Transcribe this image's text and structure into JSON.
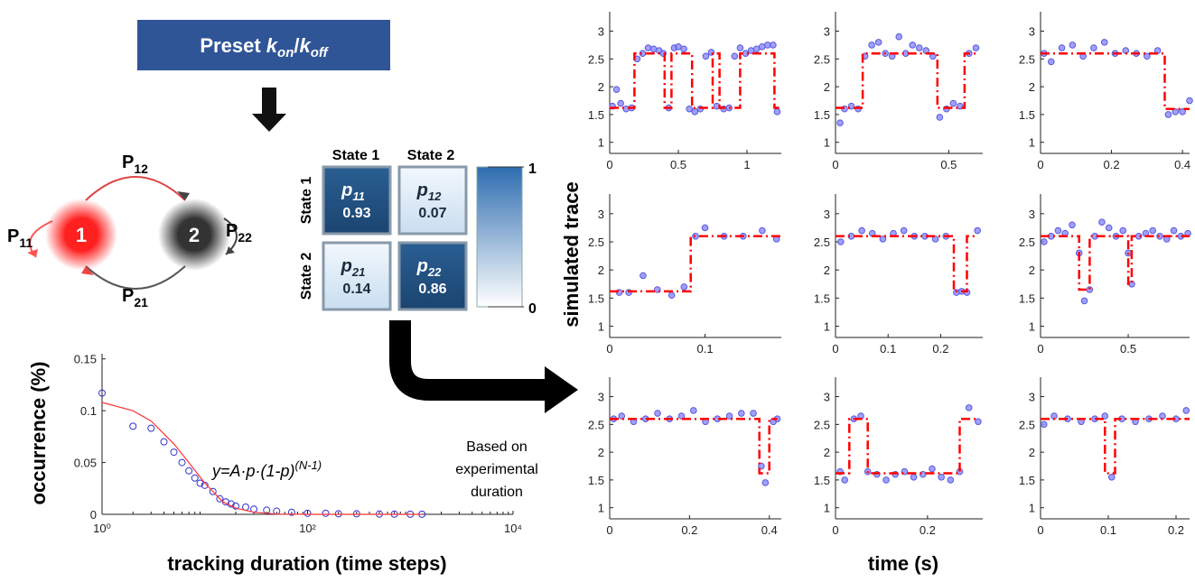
{
  "diagram": {
    "preset": {
      "prefix": "Preset",
      "k1": "k",
      "sub1": "on",
      "slash": "/",
      "k2": "k",
      "sub2": "off"
    },
    "nodes": [
      {
        "label": "1"
      },
      {
        "label": "2"
      }
    ],
    "edges": [
      {
        "main": "P",
        "sub": "12"
      },
      {
        "main": "P",
        "sub": "21"
      },
      {
        "main": "P",
        "sub": "11"
      },
      {
        "main": "P",
        "sub": "22"
      }
    ],
    "matrix": {
      "columns": [
        "State 1",
        "State 2"
      ],
      "rows": [
        "State 1",
        "State 2"
      ],
      "cells": [
        [
          {
            "symbol": "p",
            "sub": "11",
            "value": 0.93
          },
          {
            "symbol": "p",
            "sub": "12",
            "value": 0.07
          }
        ],
        [
          {
            "symbol": "p",
            "sub": "21",
            "value": 0.14
          },
          {
            "symbol": "p",
            "sub": "22",
            "value": 0.86
          }
        ]
      ],
      "colorbar": {
        "top": 1,
        "bottom": 0
      }
    },
    "note": [
      "Based on",
      "experimental",
      "duration"
    ]
  },
  "trace_grid": {
    "ylabel": "simulated trace",
    "xlabel": "time (s)"
  },
  "chart_data": [
    {
      "type": "scatter",
      "log_x": true,
      "ylabel": "occurrence (%)",
      "xlabel": "tracking duration (time steps)",
      "annotation": {
        "base": "y=A·p·(1-p)",
        "exponent": "(N-1)"
      },
      "xlim": [
        1,
        10000
      ],
      "xticks": [
        {
          "value": 1,
          "label": "10⁰"
        },
        {
          "value": 100,
          "label": "10²"
        },
        {
          "value": 10000,
          "label": "10⁴"
        }
      ],
      "ylim": [
        0,
        0.155
      ],
      "yticks": [
        0,
        0.05,
        0.1,
        0.15
      ],
      "series": [
        {
          "style": "points",
          "color": "#3333cc",
          "x": [
            1,
            2,
            3,
            4,
            5,
            6,
            7,
            8,
            9,
            10,
            12,
            14,
            16,
            18,
            20,
            25,
            30,
            40,
            50,
            70,
            100,
            150,
            200,
            300,
            500,
            700,
            1000,
            1300
          ],
          "values": [
            0.117,
            0.085,
            0.083,
            0.07,
            0.06,
            0.05,
            0.042,
            0.035,
            0.03,
            0.028,
            0.022,
            0.015,
            0.012,
            0.01,
            0.008,
            0.007,
            0.005,
            0.004,
            0.003,
            0.002,
            0.001,
            0.001,
            0.0005,
            0.0005,
            0.0003,
            0.0002,
            0.0001,
            0.0001
          ]
        },
        {
          "style": "line",
          "color": "#ff3333",
          "x": [
            1,
            2,
            3,
            5,
            7,
            10,
            15,
            20,
            30,
            50,
            100,
            300,
            1000,
            1300
          ],
          "values": [
            0.108,
            0.1,
            0.09,
            0.068,
            0.05,
            0.03,
            0.012,
            0.006,
            0.002,
            0.0003,
            0,
            0,
            0,
            0
          ]
        }
      ]
    },
    {
      "type": "step",
      "xlim": [
        0,
        1.25
      ],
      "xticks": [
        0,
        0.5,
        1
      ],
      "ylim": [
        0.8,
        3.35
      ],
      "yticks": [
        1,
        1.5,
        2,
        2.5,
        3
      ],
      "series": [
        {
          "style": "points",
          "color": "#8888ff",
          "x": [
            0.02,
            0.05,
            0.08,
            0.12,
            0.16,
            0.2,
            0.24,
            0.28,
            0.32,
            0.36,
            0.39,
            0.43,
            0.47,
            0.5,
            0.54,
            0.58,
            0.62,
            0.66,
            0.7,
            0.74,
            0.78,
            0.83,
            0.87,
            0.91,
            0.95,
            0.99,
            1.03,
            1.07,
            1.11,
            1.15,
            1.19,
            1.22
          ],
          "values": [
            1.65,
            1.95,
            1.7,
            1.6,
            1.62,
            2.5,
            2.6,
            2.7,
            2.68,
            2.65,
            2.6,
            1.62,
            2.7,
            2.72,
            2.68,
            1.6,
            1.55,
            1.6,
            2.55,
            2.62,
            1.65,
            1.6,
            1.62,
            2.55,
            2.7,
            2.6,
            2.65,
            2.68,
            2.72,
            2.75,
            2.75,
            1.55
          ]
        },
        {
          "style": "line",
          "color": "#ff0000",
          "x": [
            0,
            0.18,
            0.18,
            0.4,
            0.4,
            0.45,
            0.45,
            0.6,
            0.6,
            0.75,
            0.75,
            0.8,
            0.8,
            0.95,
            0.95,
            1.2,
            1.2,
            1.25
          ],
          "values": [
            1.62,
            1.62,
            2.6,
            2.6,
            1.62,
            1.62,
            2.6,
            2.6,
            1.62,
            1.62,
            2.6,
            2.6,
            1.62,
            1.62,
            2.6,
            2.6,
            1.62,
            1.62
          ]
        }
      ]
    },
    {
      "type": "step",
      "xlim": [
        0,
        0.65
      ],
      "xticks": [
        0,
        0.5
      ],
      "ylim": [
        0.8,
        3.35
      ],
      "yticks": [
        1,
        1.5,
        2,
        2.5,
        3
      ],
      "series": [
        {
          "style": "points",
          "color": "#8888ff",
          "x": [
            0.02,
            0.04,
            0.07,
            0.1,
            0.13,
            0.16,
            0.19,
            0.22,
            0.25,
            0.28,
            0.31,
            0.34,
            0.37,
            0.4,
            0.43,
            0.46,
            0.49,
            0.52,
            0.55,
            0.59,
            0.62
          ],
          "values": [
            1.35,
            1.6,
            1.65,
            1.6,
            2.55,
            2.75,
            2.8,
            2.6,
            2.55,
            2.9,
            2.6,
            2.75,
            2.7,
            2.65,
            2.55,
            1.45,
            1.6,
            1.7,
            1.65,
            2.6,
            2.7
          ]
        },
        {
          "style": "line",
          "color": "#ff0000",
          "x": [
            0,
            0.12,
            0.12,
            0.45,
            0.45,
            0.57,
            0.57,
            0.62
          ],
          "values": [
            1.62,
            1.62,
            2.6,
            2.6,
            1.62,
            1.62,
            2.6,
            2.6
          ]
        }
      ]
    },
    {
      "type": "step",
      "xlim": [
        0,
        0.42
      ],
      "xticks": [
        0,
        0.2,
        0.4
      ],
      "ylim": [
        0.8,
        3.35
      ],
      "yticks": [
        1,
        1.5,
        2,
        2.5,
        3
      ],
      "series": [
        {
          "style": "points",
          "color": "#8888ff",
          "x": [
            0.01,
            0.03,
            0.06,
            0.09,
            0.12,
            0.15,
            0.18,
            0.21,
            0.24,
            0.27,
            0.3,
            0.33,
            0.36,
            0.38,
            0.4,
            0.42
          ],
          "values": [
            2.6,
            2.45,
            2.7,
            2.75,
            2.55,
            2.7,
            2.8,
            2.6,
            2.65,
            2.6,
            2.55,
            2.65,
            1.5,
            1.55,
            1.55,
            1.75
          ]
        },
        {
          "style": "line",
          "color": "#ff0000",
          "x": [
            0,
            0.35,
            0.35,
            0.42
          ],
          "values": [
            2.6,
            2.6,
            1.6,
            1.6
          ]
        }
      ]
    },
    {
      "type": "step",
      "xlim": [
        0,
        0.18
      ],
      "xticks": [
        0,
        0.1
      ],
      "ylim": [
        0.8,
        3.35
      ],
      "yticks": [
        1,
        1.5,
        2,
        2.5,
        3
      ],
      "series": [
        {
          "style": "points",
          "color": "#8888ff",
          "x": [
            0.01,
            0.02,
            0.035,
            0.05,
            0.065,
            0.078,
            0.09,
            0.1,
            0.12,
            0.14,
            0.16,
            0.175
          ],
          "values": [
            1.6,
            1.6,
            1.9,
            1.65,
            1.55,
            1.7,
            2.6,
            2.75,
            2.6,
            2.6,
            2.7,
            2.55
          ]
        },
        {
          "style": "line",
          "color": "#ff0000",
          "x": [
            0,
            0.085,
            0.085,
            0.18
          ],
          "values": [
            1.62,
            1.62,
            2.6,
            2.6
          ]
        }
      ]
    },
    {
      "type": "step",
      "xlim": [
        0,
        0.28
      ],
      "xticks": [
        0,
        0.1,
        0.2
      ],
      "ylim": [
        0.8,
        3.35
      ],
      "yticks": [
        1,
        1.5,
        2,
        2.5,
        3
      ],
      "series": [
        {
          "style": "points",
          "color": "#8888ff",
          "x": [
            0.01,
            0.03,
            0.05,
            0.07,
            0.09,
            0.11,
            0.13,
            0.15,
            0.17,
            0.19,
            0.21,
            0.23,
            0.24,
            0.25,
            0.27
          ],
          "values": [
            2.5,
            2.6,
            2.7,
            2.65,
            2.55,
            2.65,
            2.7,
            2.6,
            2.6,
            2.55,
            2.6,
            1.6,
            1.62,
            1.6,
            2.7
          ]
        },
        {
          "style": "line",
          "color": "#ff0000",
          "x": [
            0,
            0.225,
            0.225,
            0.25,
            0.25,
            0.27
          ],
          "values": [
            2.6,
            2.6,
            1.62,
            1.62,
            2.6,
            2.6
          ]
        }
      ]
    },
    {
      "type": "step",
      "xlim": [
        0,
        0.85
      ],
      "xticks": [
        0,
        0.5
      ],
      "ylim": [
        0.8,
        3.35
      ],
      "yticks": [
        1,
        1.5,
        2,
        2.5,
        3
      ],
      "series": [
        {
          "style": "points",
          "color": "#8888ff",
          "x": [
            0.02,
            0.06,
            0.1,
            0.14,
            0.18,
            0.22,
            0.25,
            0.28,
            0.31,
            0.35,
            0.39,
            0.43,
            0.47,
            0.5,
            0.52,
            0.56,
            0.6,
            0.64,
            0.68,
            0.72,
            0.76,
            0.8,
            0.84
          ],
          "values": [
            2.5,
            2.6,
            2.7,
            2.65,
            2.8,
            2.3,
            1.45,
            1.65,
            2.6,
            2.85,
            2.75,
            2.6,
            2.7,
            2.3,
            1.75,
            2.6,
            2.65,
            2.7,
            2.6,
            2.55,
            2.7,
            2.6,
            2.65
          ]
        },
        {
          "style": "line",
          "color": "#ff0000",
          "x": [
            0,
            0.22,
            0.22,
            0.28,
            0.28,
            0.5,
            0.5,
            0.52,
            0.52,
            0.85
          ],
          "values": [
            2.6,
            2.6,
            1.65,
            1.65,
            2.6,
            2.6,
            1.75,
            1.75,
            2.6,
            2.6
          ]
        }
      ]
    },
    {
      "type": "step",
      "xlim": [
        0,
        0.43
      ],
      "xticks": [
        0,
        0.2,
        0.4
      ],
      "ylim": [
        0.8,
        3.35
      ],
      "yticks": [
        1,
        1.5,
        2,
        2.5,
        3
      ],
      "series": [
        {
          "style": "points",
          "color": "#8888ff",
          "x": [
            0.01,
            0.03,
            0.06,
            0.09,
            0.12,
            0.15,
            0.18,
            0.21,
            0.24,
            0.27,
            0.3,
            0.33,
            0.36,
            0.38,
            0.39,
            0.41,
            0.42
          ],
          "values": [
            2.6,
            2.65,
            2.55,
            2.6,
            2.7,
            2.6,
            2.65,
            2.75,
            2.55,
            2.6,
            2.65,
            2.7,
            2.7,
            1.75,
            1.45,
            2.55,
            2.6
          ]
        },
        {
          "style": "line",
          "color": "#ff0000",
          "x": [
            0,
            0.375,
            0.375,
            0.4,
            0.4,
            0.42
          ],
          "values": [
            2.6,
            2.6,
            1.62,
            1.62,
            2.6,
            2.6
          ]
        }
      ]
    },
    {
      "type": "step",
      "xlim": [
        0,
        0.32
      ],
      "xticks": [
        0,
        0.2
      ],
      "ylim": [
        0.8,
        3.35
      ],
      "yticks": [
        1,
        1.5,
        2,
        2.5,
        3
      ],
      "series": [
        {
          "style": "points",
          "color": "#8888ff",
          "x": [
            0.01,
            0.02,
            0.04,
            0.055,
            0.07,
            0.09,
            0.11,
            0.13,
            0.15,
            0.17,
            0.19,
            0.21,
            0.23,
            0.25,
            0.27,
            0.29,
            0.31
          ],
          "values": [
            1.65,
            1.5,
            2.6,
            2.65,
            1.65,
            1.6,
            1.5,
            1.6,
            1.65,
            1.55,
            1.6,
            1.7,
            1.55,
            1.5,
            1.65,
            2.8,
            2.55
          ]
        },
        {
          "style": "line",
          "color": "#ff0000",
          "x": [
            0,
            0.03,
            0.03,
            0.07,
            0.07,
            0.27,
            0.27,
            0.31
          ],
          "values": [
            1.62,
            1.62,
            2.6,
            2.6,
            1.62,
            1.62,
            2.6,
            2.6
          ]
        }
      ]
    },
    {
      "type": "step",
      "xlim": [
        0,
        0.22
      ],
      "xticks": [
        0,
        0.1,
        0.2
      ],
      "ylim": [
        0.8,
        3.35
      ],
      "yticks": [
        1,
        1.5,
        2,
        2.5,
        3
      ],
      "series": [
        {
          "style": "points",
          "color": "#8888ff",
          "x": [
            0.005,
            0.02,
            0.04,
            0.06,
            0.08,
            0.095,
            0.105,
            0.12,
            0.14,
            0.16,
            0.18,
            0.2,
            0.215
          ],
          "values": [
            2.5,
            2.65,
            2.6,
            2.55,
            2.6,
            2.65,
            1.55,
            2.6,
            2.55,
            2.6,
            2.65,
            2.6,
            2.75
          ]
        },
        {
          "style": "line",
          "color": "#ff0000",
          "x": [
            0,
            0.095,
            0.095,
            0.11,
            0.11,
            0.22
          ],
          "values": [
            2.6,
            2.6,
            1.62,
            1.62,
            2.6,
            2.6
          ]
        }
      ]
    }
  ]
}
